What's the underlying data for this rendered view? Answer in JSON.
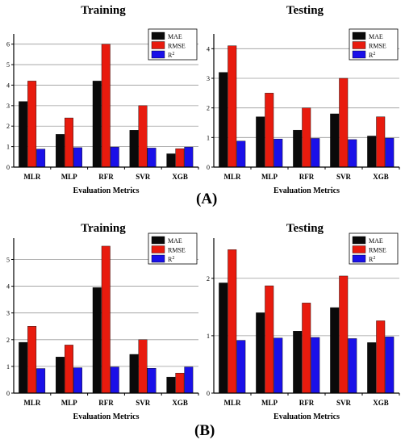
{
  "panel_labels": [
    "(A)",
    "(B)"
  ],
  "colors": {
    "MAE": "#0a0a0a",
    "RMSE": "#e81b0e",
    "R2": "#1a10e8",
    "B_MAE": "#2a0a0a"
  },
  "legend_labels": [
    "MAE",
    "RMSE",
    "R2"
  ],
  "chart_data": [
    {
      "type": "bar",
      "title": "Training",
      "xlabel": "Evaluation Metrics",
      "ylabel": "",
      "categories": [
        "MLR",
        "MLP",
        "RFR",
        "SVR",
        "XGB"
      ],
      "ylim": [
        0,
        6.5
      ],
      "yticks": [
        0,
        1,
        2,
        3,
        4,
        5,
        6
      ],
      "ytick_labels": [
        "0",
        "1",
        "2",
        "3",
        "4",
        "5",
        "6"
      ],
      "series": [
        {
          "name": "MAE",
          "values": [
            3.2,
            1.6,
            4.2,
            1.8,
            0.65
          ]
        },
        {
          "name": "RMSE",
          "values": [
            4.2,
            2.4,
            6.0,
            3.0,
            0.9
          ]
        },
        {
          "name": "R2",
          "values": [
            0.88,
            0.95,
            0.98,
            0.93,
            0.98
          ]
        }
      ]
    },
    {
      "type": "bar",
      "title": "Testing",
      "xlabel": "Evaluation Metrics",
      "ylabel": "",
      "categories": [
        "MLR",
        "MLP",
        "RFR",
        "SVR",
        "XGB"
      ],
      "ylim": [
        0,
        4.5
      ],
      "yticks": [
        0,
        1,
        2,
        3,
        4
      ],
      "ytick_labels": [
        "0",
        "1",
        "2",
        "3",
        "4"
      ],
      "series": [
        {
          "name": "MAE",
          "values": [
            3.2,
            1.7,
            1.25,
            1.8,
            1.05
          ]
        },
        {
          "name": "RMSE",
          "values": [
            4.1,
            2.5,
            2.0,
            3.0,
            1.7
          ]
        },
        {
          "name": "R2",
          "values": [
            0.88,
            0.95,
            0.97,
            0.93,
            0.98
          ]
        }
      ]
    },
    {
      "type": "bar",
      "title": "Training",
      "xlabel": "Evaluation Metrics",
      "ylabel": "",
      "categories": [
        "MLR",
        "MLP",
        "RFR",
        "SVR",
        "XGB"
      ],
      "ylim": [
        0,
        5.8
      ],
      "yticks": [
        0,
        1,
        2,
        3,
        4,
        5
      ],
      "ytick_labels": [
        "0",
        "1",
        "2",
        "3",
        "4",
        "5"
      ],
      "series": [
        {
          "name": "MAE",
          "values": [
            1.9,
            1.35,
            3.95,
            1.45,
            0.6
          ]
        },
        {
          "name": "RMSE",
          "values": [
            2.5,
            1.8,
            5.5,
            2.0,
            0.75
          ]
        },
        {
          "name": "R2",
          "values": [
            0.92,
            0.95,
            0.98,
            0.93,
            0.98
          ]
        }
      ]
    },
    {
      "type": "bar",
      "title": "Testing",
      "xlabel": "Evaluation Metrics",
      "ylabel": "",
      "categories": [
        "MLR",
        "MLP",
        "RFR",
        "SVR",
        "XGB"
      ],
      "ylim": [
        0,
        2.7
      ],
      "yticks": [
        0,
        1,
        2
      ],
      "ytick_labels": [
        "0",
        "1",
        "2"
      ],
      "series": [
        {
          "name": "MAE",
          "values": [
            1.92,
            1.4,
            1.08,
            1.49,
            0.88
          ]
        },
        {
          "name": "RMSE",
          "values": [
            2.5,
            1.87,
            1.57,
            2.04,
            1.26
          ]
        },
        {
          "name": "R2",
          "values": [
            0.92,
            0.96,
            0.97,
            0.95,
            0.98
          ]
        }
      ]
    }
  ]
}
